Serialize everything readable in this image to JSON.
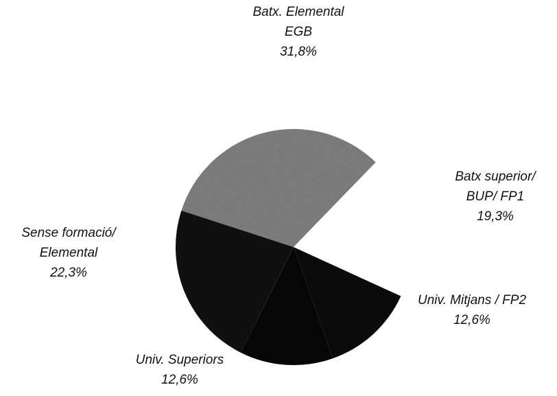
{
  "chart_data": {
    "type": "pie",
    "categories": [
      [
        "Batx. Elemental",
        "EGB"
      ],
      [
        "Batx superior/",
        "BUP/ FP1"
      ],
      [
        "Univ. Mitjans / FP2"
      ],
      [
        "Univ. Superiors"
      ],
      [
        "Sense formació/",
        "Elemental"
      ]
    ],
    "values": [
      31.8,
      19.3,
      12.6,
      12.6,
      22.3
    ],
    "value_labels": [
      "31,8%",
      "19,3%",
      "12,6%",
      "12,6%",
      "22,3%"
    ],
    "colors": [
      "#8c8c8c",
      "#ffffff",
      "#0b0b0b",
      "#060606",
      "#101010"
    ]
  }
}
